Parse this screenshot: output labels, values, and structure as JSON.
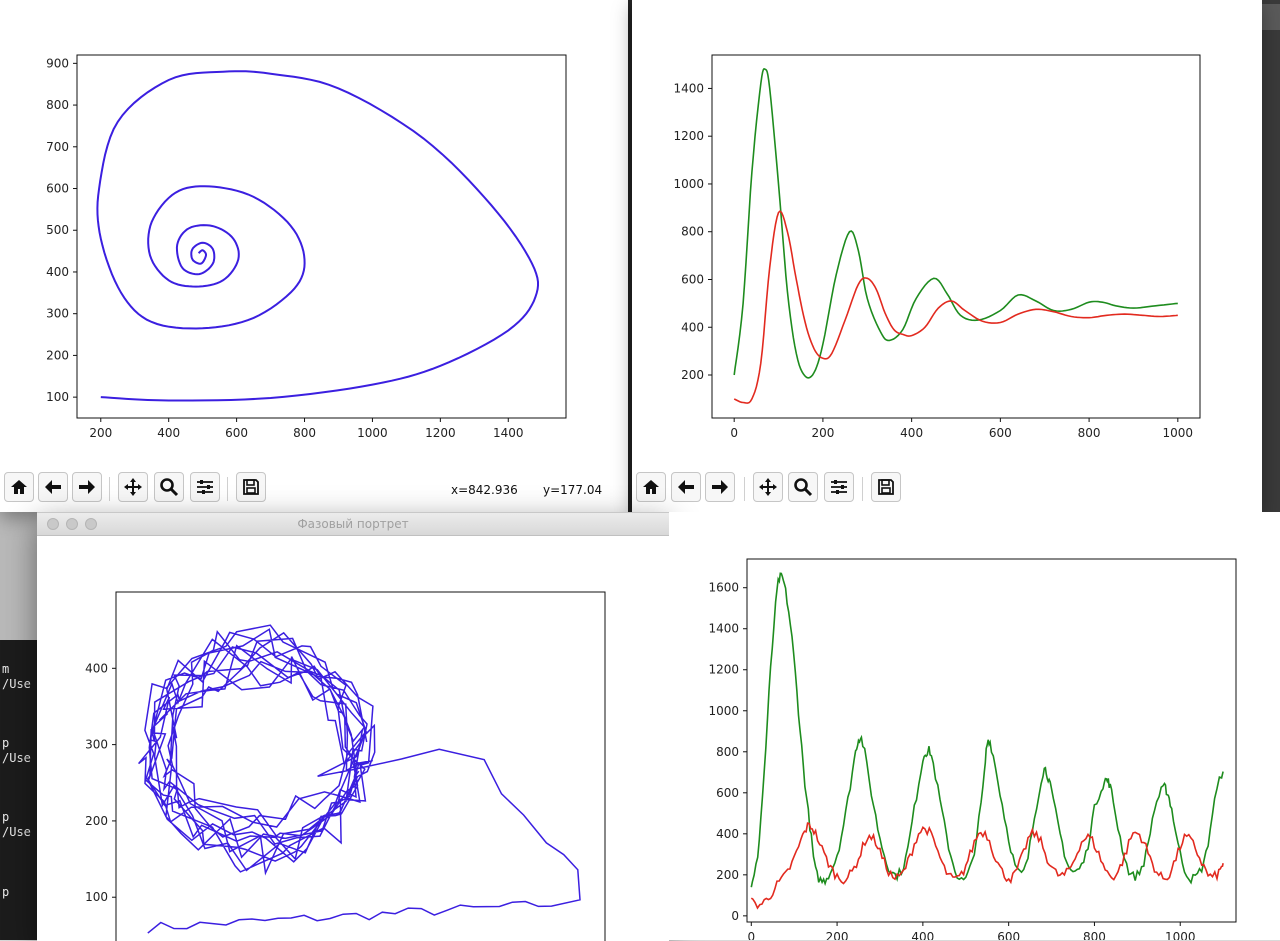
{
  "windows": {
    "phase": {
      "chart_data": {
        "type": "line",
        "title": "",
        "xlabel": "",
        "ylabel": "",
        "xlim": [
          130,
          1570
        ],
        "ylim": [
          50,
          920
        ],
        "xticks": [
          "200",
          "400",
          "600",
          "800",
          "1000",
          "1200",
          "1400"
        ],
        "yticks": [
          "100",
          "200",
          "300",
          "400",
          "500",
          "600",
          "700",
          "800",
          "900"
        ],
        "series": [
          {
            "color": "#3b1fe0",
            "description_points": [
              [
                200,
                100
              ],
              [
                400,
                92
              ],
              [
                700,
                98
              ],
              [
                1000,
                130
              ],
              [
                1200,
                175
              ],
              [
                1400,
                260
              ],
              [
                1480,
                340
              ],
              [
                1470,
                420
              ],
              [
                1350,
                560
              ],
              [
                1150,
                720
              ],
              [
                900,
                840
              ],
              [
                700,
                875
              ],
              [
                560,
                880
              ],
              [
                400,
                860
              ],
              [
                250,
                760
              ],
              [
                195,
                600
              ],
              [
                200,
                480
              ],
              [
                260,
                350
              ],
              [
                350,
                280
              ],
              [
                500,
                265
              ],
              [
                650,
                290
              ],
              [
                770,
                360
              ],
              [
                800,
                430
              ],
              [
                760,
                510
              ],
              [
                650,
                580
              ],
              [
                520,
                605
              ],
              [
                420,
                590
              ],
              [
                350,
                520
              ],
              [
                345,
                440
              ],
              [
                400,
                380
              ],
              [
                480,
                365
              ],
              [
                560,
                380
              ],
              [
                605,
                430
              ],
              [
                590,
                480
              ],
              [
                530,
                510
              ],
              [
                460,
                505
              ],
              [
                425,
                465
              ],
              [
                440,
                410
              ],
              [
                490,
                395
              ],
              [
                530,
                420
              ],
              [
                530,
                455
              ],
              [
                500,
                470
              ],
              [
                470,
                455
              ],
              [
                470,
                430
              ],
              [
                495,
                420
              ],
              [
                510,
                440
              ],
              [
                500,
                452
              ],
              [
                488,
                445
              ]
            ]
          }
        ]
      },
      "toolbar": {
        "buttons": [
          "home-icon",
          "back-icon",
          "forward-icon",
          "pan-icon",
          "zoom-icon",
          "configure-icon",
          "save-icon"
        ],
        "x_readout": "x=842.936",
        "y_readout": "y=177.04"
      }
    },
    "time": {
      "chart_data": {
        "type": "line",
        "title": "",
        "xlabel": "",
        "ylabel": "",
        "xlim": [
          -50,
          1050
        ],
        "ylim": [
          20,
          1540
        ],
        "xticks": [
          "0",
          "200",
          "400",
          "600",
          "800",
          "1000"
        ],
        "yticks": [
          "200",
          "400",
          "600",
          "800",
          "1000",
          "1200",
          "1400"
        ],
        "series": [
          {
            "color": "#1e8c1e",
            "x": [
              0,
              20,
              40,
              60,
              70,
              80,
              100,
              120,
              140,
              160,
              180,
              200,
              230,
              260,
              280,
              300,
              330,
              350,
              380,
              410,
              450,
              480,
              510,
              550,
              600,
              640,
              680,
              720,
              760,
              800,
              830,
              860,
              900,
              950,
              1000
            ],
            "y": [
              200,
              500,
              1050,
              1420,
              1480,
              1400,
              1000,
              550,
              290,
              195,
              210,
              330,
              620,
              800,
              720,
              520,
              380,
              345,
              390,
              520,
              605,
              540,
              450,
              430,
              470,
              535,
              510,
              470,
              475,
              505,
              505,
              490,
              480,
              490,
              500
            ]
          },
          {
            "color": "#e22a1f",
            "x": [
              0,
              20,
              40,
              60,
              80,
              100,
              120,
              140,
              160,
              180,
              200,
              220,
              250,
              280,
              300,
              320,
              340,
              360,
              380,
              400,
              430,
              460,
              490,
              520,
              560,
              600,
              640,
              680,
              720,
              760,
              800,
              840,
              880,
              920,
              960,
              1000
            ],
            "y": [
              100,
              85,
              100,
              250,
              650,
              880,
              800,
              600,
              420,
              310,
              270,
              290,
              430,
              580,
              605,
              560,
              460,
              390,
              370,
              365,
              400,
              480,
              510,
              470,
              425,
              420,
              455,
              475,
              465,
              445,
              440,
              450,
              455,
              450,
              445,
              450
            ]
          }
        ]
      },
      "toolbar": {
        "buttons": [
          "home-icon",
          "back-icon",
          "forward-icon",
          "pan-icon",
          "zoom-icon",
          "configure-icon",
          "save-icon"
        ]
      }
    },
    "phase_noise": {
      "title": "Фазовый портрет",
      "chart_data": {
        "type": "line",
        "title": "",
        "xlabel": "",
        "ylabel": "",
        "xlim": [
          30,
          1720
        ],
        "ylim": [
          40,
          500
        ],
        "yticks": [
          "100",
          "200",
          "300",
          "400"
        ],
        "series": [
          {
            "color": "#3b1fe0"
          }
        ]
      }
    },
    "time_noise": {
      "chart_data": {
        "type": "line",
        "title": "",
        "xlabel": "",
        "ylabel": "",
        "xlim": [
          -10,
          1130
        ],
        "ylim": [
          -30,
          1740
        ],
        "xticks": [
          "0",
          "200",
          "400",
          "600",
          "800",
          "1000"
        ],
        "yticks": [
          "0",
          "200",
          "400",
          "600",
          "800",
          "1000",
          "1200",
          "1400",
          "1600"
        ],
        "series": [
          {
            "color": "#1e8c1e",
            "x": [
              0,
              15,
              30,
              45,
              60,
              70,
              80,
              95,
              110,
              125,
              140,
              150,
              165,
              180,
              200,
              220,
              240,
              250,
              260,
              280,
              300,
              320,
              340,
              360,
              380,
              400,
              410,
              420,
              440,
              460,
              480,
              500,
              520,
              540,
              550,
              560,
              580,
              600,
              620,
              640,
              660,
              680,
              690,
              700,
              720,
              740,
              760,
              780,
              800,
              820,
              830,
              840,
              860,
              880,
              900,
              920,
              940,
              960,
              970,
              980,
              1000,
              1020,
              1040,
              1060,
              1080,
              1100
            ],
            "y": [
              130,
              300,
              700,
              1200,
              1580,
              1650,
              1580,
              1350,
              1000,
              650,
              380,
              220,
              170,
              200,
              300,
              500,
              760,
              860,
              840,
              600,
              380,
              240,
              200,
              280,
              520,
              760,
              800,
              780,
              560,
              340,
              200,
              180,
              320,
              620,
              840,
              820,
              600,
              380,
              220,
              240,
              480,
              700,
              690,
              600,
              400,
              240,
              220,
              300,
              520,
              640,
              660,
              600,
              380,
              220,
              200,
              300,
              520,
              620,
              600,
              520,
              300,
              190,
              200,
              300,
              560,
              720
            ]
          },
          {
            "color": "#e22a1f",
            "x": [
              0,
              20,
              40,
              60,
              80,
              100,
              120,
              135,
              150,
              170,
              190,
              210,
              230,
              250,
              270,
              290,
              310,
              330,
              350,
              370,
              390,
              410,
              430,
              450,
              470,
              490,
              510,
              530,
              550,
              570,
              590,
              610,
              630,
              650,
              670,
              690,
              710,
              730,
              750,
              770,
              790,
              810,
              830,
              850,
              870,
              890,
              910,
              930,
              950,
              970,
              990,
              1010,
              1030,
              1050,
              1070,
              1090,
              1100
            ],
            "y": [
              70,
              55,
              90,
              150,
              200,
              280,
              390,
              440,
              400,
              300,
              220,
              180,
              200,
              280,
              380,
              360,
              260,
              190,
              200,
              290,
              400,
              420,
              340,
              230,
              180,
              200,
              300,
              400,
              390,
              280,
              200,
              190,
              280,
              390,
              380,
              280,
              210,
              200,
              260,
              360,
              380,
              300,
              210,
              200,
              290,
              400,
              380,
              280,
              200,
              190,
              280,
              380,
              350,
              260,
              190,
              210,
              260
            ]
          }
        ]
      }
    },
    "terminal": {
      "lines": [
        {
          "text": "m"
        },
        {
          "text": "/Use"
        },
        {
          "text": "p"
        },
        {
          "text": "/Use"
        },
        {
          "text": "p"
        },
        {
          "text": "/Use"
        },
        {
          "text": "p"
        }
      ]
    },
    "colors": {
      "phase_line": "#3b1fe0",
      "green_line": "#1e8c1e",
      "red_line": "#e22a1f"
    }
  }
}
